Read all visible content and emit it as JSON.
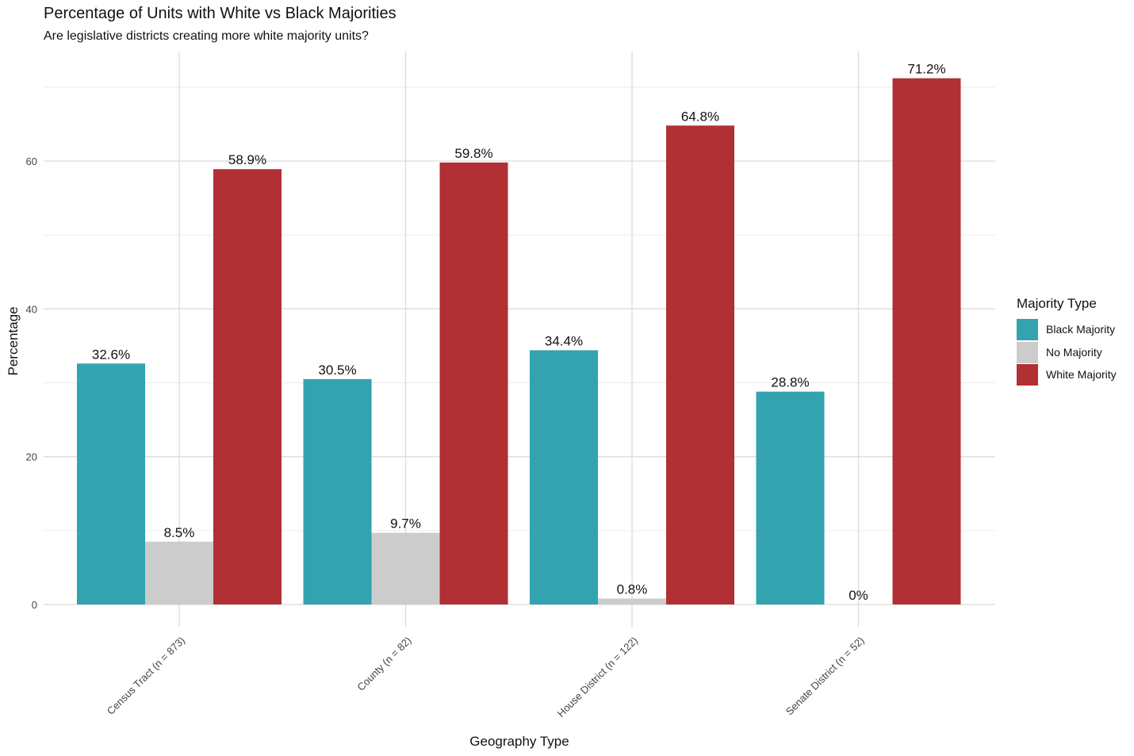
{
  "chart_data": {
    "type": "bar",
    "title": "Percentage of Units with White vs Black Majorities",
    "subtitle": "Are legislative districts creating more white majority units?",
    "xlabel": "Geography Type",
    "ylabel": "Percentage",
    "categories": [
      "Census Tract (n = 873)",
      "County (n = 82)",
      "House District (n = 122)",
      "Senate District (n = 52)"
    ],
    "series": [
      {
        "name": "Black Majority",
        "color": "#33a3b0",
        "values": [
          32.6,
          30.5,
          34.4,
          28.8
        ],
        "labels": [
          "32.6%",
          "30.5%",
          "34.4%",
          "28.8%"
        ]
      },
      {
        "name": "No Majority",
        "color": "#cccccc",
        "values": [
          8.5,
          9.7,
          0.8,
          0
        ],
        "labels": [
          "8.5%",
          "9.7%",
          "0.8%",
          "0%"
        ]
      },
      {
        "name": "White Majority",
        "color": "#b03033",
        "values": [
          58.9,
          59.8,
          64.8,
          71.2
        ],
        "labels": [
          "58.9%",
          "59.8%",
          "64.8%",
          "71.2%"
        ]
      }
    ],
    "yticks": [
      0,
      20,
      40,
      60
    ],
    "ylim": [
      -2.5,
      75
    ],
    "grid": true,
    "legend": {
      "title": "Majority Type",
      "position": "right"
    }
  }
}
